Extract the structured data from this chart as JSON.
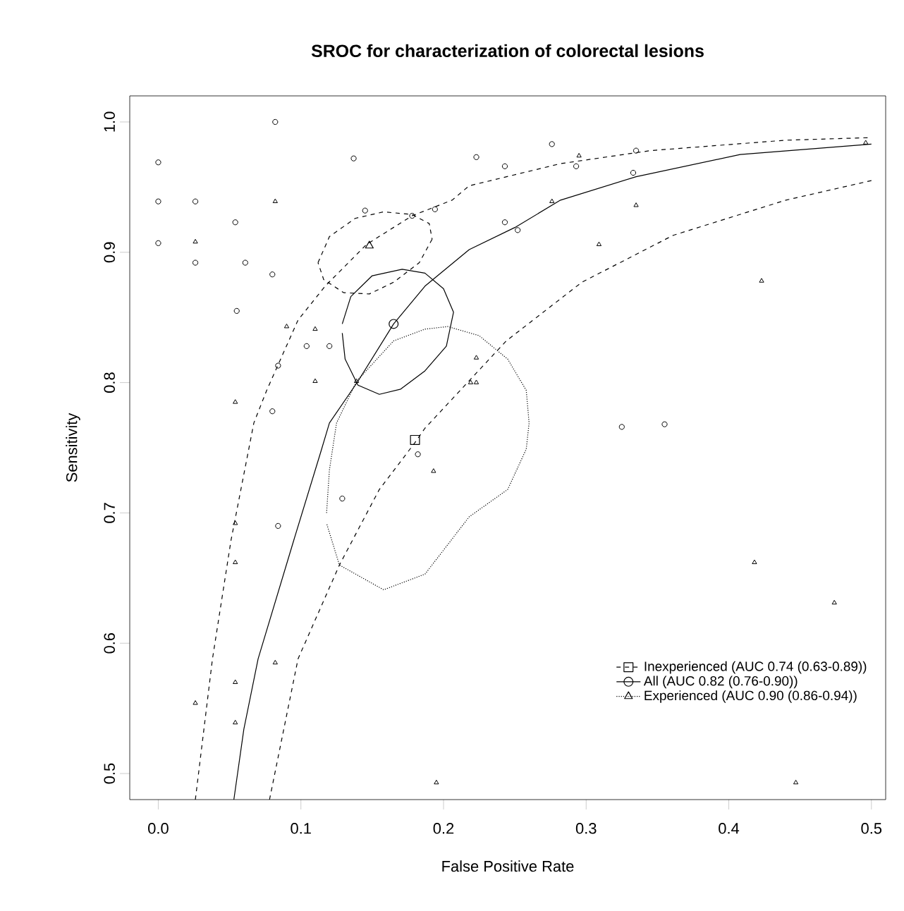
{
  "chart_data": {
    "type": "scatter",
    "title": "SROC for characterization of colorectal lesions",
    "xlabel": "False Positive Rate",
    "ylabel": "Sensitivity",
    "xlim": [
      -0.02,
      0.51
    ],
    "ylim": [
      0.48,
      1.02
    ],
    "xticks": [
      {
        "value": 0,
        "label": "0.0"
      },
      {
        "value": 0.1,
        "label": "0.1"
      },
      {
        "value": 0.2,
        "label": "0.2"
      },
      {
        "value": 0.3,
        "label": "0.3"
      },
      {
        "value": 0.4,
        "label": "0.4"
      },
      {
        "value": 0.5,
        "label": "0.5"
      }
    ],
    "yticks": [
      {
        "value": 0.5,
        "label": "0.5"
      },
      {
        "value": 0.6,
        "label": "0.6"
      },
      {
        "value": 0.7,
        "label": "0.7"
      },
      {
        "value": 0.8,
        "label": "0.8"
      },
      {
        "value": 0.9,
        "label": "0.9"
      },
      {
        "value": 1.0,
        "label": "1.0"
      }
    ],
    "grid": false,
    "legend": "bottom right",
    "series": [
      {
        "type": "scatter",
        "name": "Inexperienced (AUC 0.74 (0.63-0.89))",
        "color": "#000000",
        "marker": "square",
        "line_style": "dashed",
        "x": [
          0.18
        ],
        "values": [
          0.756
        ]
      },
      {
        "type": "scatter",
        "name": "All (AUC 0.82 (0.76-0.90))",
        "color": "#000000",
        "marker": "circle",
        "line_style": "solid",
        "x": [
          0.165
        ],
        "values": [
          0.845
        ]
      },
      {
        "type": "scatter",
        "name": "Experienced (AUC 0.90 (0.86-0.94))",
        "color": "#000000",
        "marker": "triangle",
        "line_style": "dotted",
        "x": [
          0.148
        ],
        "values": [
          0.905
        ]
      },
      {
        "type": "line",
        "color": "#000000",
        "line_style": "solid",
        "marker": "none",
        "x": [
          0.053,
          0.06,
          0.07,
          0.095,
          0.114,
          0.12,
          0.14,
          0.165,
          0.187,
          0.218,
          0.25,
          0.282,
          0.335,
          0.408,
          0.5
        ],
        "values": [
          0.48,
          0.534,
          0.588,
          0.679,
          0.747,
          0.769,
          0.801,
          0.845,
          0.874,
          0.902,
          0.919,
          0.94,
          0.958,
          0.975,
          0.983
        ]
      },
      {
        "type": "line",
        "color": "#000000",
        "line_style": "dashed",
        "marker": "none",
        "x": [
          0.026,
          0.038,
          0.051,
          0.067,
          0.076,
          0.098,
          0.117,
          0.146,
          0.178,
          0.206,
          0.218,
          0.282,
          0.345,
          0.44,
          0.5
        ],
        "values": [
          0.48,
          0.588,
          0.679,
          0.769,
          0.794,
          0.848,
          0.874,
          0.906,
          0.928,
          0.94,
          0.951,
          0.968,
          0.978,
          0.986,
          0.988
        ]
      },
      {
        "type": "line",
        "color": "#000000",
        "line_style": "dashed",
        "marker": "none",
        "x": [
          0.078,
          0.098,
          0.127,
          0.155,
          0.18,
          0.187,
          0.244,
          0.297,
          0.361,
          0.44,
          0.5
        ],
        "values": [
          0.48,
          0.588,
          0.66,
          0.718,
          0.754,
          0.765,
          0.832,
          0.877,
          0.913,
          0.94,
          0.955
        ]
      },
      {
        "type": "line",
        "color": "#000000",
        "line_style": "solid",
        "marker": "none",
        "x": [
          0.129,
          0.135,
          0.15,
          0.171,
          0.187,
          0.2,
          0.207,
          0.202,
          0.187,
          0.17,
          0.155,
          0.14,
          0.131,
          0.129
        ],
        "values": [
          0.845,
          0.866,
          0.882,
          0.887,
          0.884,
          0.872,
          0.854,
          0.828,
          0.809,
          0.795,
          0.791,
          0.798,
          0.818,
          0.838
        ]
      },
      {
        "type": "line",
        "color": "#000000",
        "line_style": "dashed",
        "marker": "none",
        "x": [
          0.112,
          0.12,
          0.138,
          0.158,
          0.178,
          0.19,
          0.192
        ],
        "values": [
          0.892,
          0.912,
          0.926,
          0.931,
          0.929,
          0.922,
          0.91
        ]
      },
      {
        "type": "line",
        "color": "#000000",
        "line_style": "dashed",
        "marker": "none",
        "x": [
          0.192,
          0.183,
          0.165,
          0.148,
          0.13,
          0.116,
          0.112
        ],
        "values": [
          0.91,
          0.892,
          0.877,
          0.868,
          0.869,
          0.879,
          0.892
        ]
      },
      {
        "type": "line",
        "color": "#000000",
        "line_style": "dotted",
        "marker": "none",
        "x": [
          0.118,
          0.12,
          0.125,
          0.139,
          0.165,
          0.187,
          0.203,
          0.225,
          0.245,
          0.258,
          0.26,
          0.258,
          0.245,
          0.218,
          0.187,
          0.158,
          0.127,
          0.118
        ],
        "values": [
          0.7,
          0.733,
          0.769,
          0.801,
          0.832,
          0.841,
          0.843,
          0.836,
          0.818,
          0.794,
          0.769,
          0.749,
          0.718,
          0.697,
          0.653,
          0.641,
          0.66,
          0.692
        ]
      },
      {
        "color": "#000000",
        "marker": "circle",
        "x": [
          0.0,
          0.0,
          0.0,
          0.026,
          0.026,
          0.082,
          0.137,
          0.145,
          0.054,
          0.061,
          0.08,
          0.055,
          0.104,
          0.12,
          0.084,
          0.08,
          0.178,
          0.194,
          0.223,
          0.243,
          0.276,
          0.293,
          0.335,
          0.333,
          0.243,
          0.252,
          0.325,
          0.355,
          0.182,
          0.129,
          0.084
        ],
        "values": [
          0.969,
          0.939,
          0.907,
          0.939,
          0.892,
          1.0,
          0.972,
          0.932,
          0.923,
          0.892,
          0.883,
          0.855,
          0.828,
          0.828,
          0.813,
          0.778,
          0.928,
          0.933,
          0.973,
          0.966,
          0.983,
          0.966,
          0.978,
          0.961,
          0.923,
          0.917,
          0.766,
          0.768,
          0.745,
          0.711,
          0.69
        ]
      },
      {
        "color": "#000000",
        "marker": "triangle",
        "x": [
          0.026,
          0.082,
          0.09,
          0.11,
          0.11,
          0.054,
          0.139,
          0.295,
          0.276,
          0.335,
          0.309,
          0.423,
          0.496,
          0.223,
          0.219,
          0.223,
          0.054,
          0.054,
          0.193,
          0.082,
          0.054,
          0.026,
          0.054,
          0.195,
          0.418,
          0.474,
          0.447
        ],
        "values": [
          0.908,
          0.939,
          0.843,
          0.841,
          0.801,
          0.785,
          0.801,
          0.974,
          0.939,
          0.936,
          0.906,
          0.878,
          0.984,
          0.819,
          0.8,
          0.8,
          0.692,
          0.662,
          0.732,
          0.585,
          0.57,
          0.554,
          0.539,
          0.493,
          0.662,
          0.631,
          0.493
        ]
      }
    ]
  }
}
